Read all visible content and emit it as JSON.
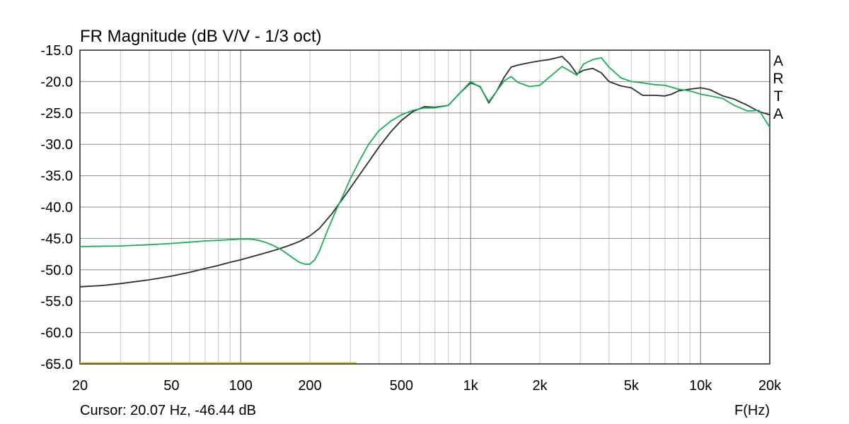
{
  "chart_data": {
    "type": "line",
    "title": "FR Magnitude (dB V/V - 1/3 oct)",
    "xlabel": "F(Hz)",
    "x_scale": "log",
    "xlim": [
      20,
      20000
    ],
    "ylim": [
      -65,
      -15
    ],
    "grid": true,
    "watermark": "ARTA",
    "cursor_text": "Cursor: 20.07 Hz, -46.44 dB",
    "y_ticks": [
      -15,
      -20,
      -25,
      -30,
      -35,
      -40,
      -45,
      -50,
      -55,
      -60,
      -65
    ],
    "y_tick_labels": [
      "-15.0",
      "-20.0",
      "-25.0",
      "-30.0",
      "-35.0",
      "-40.0",
      "-45.0",
      "-50.0",
      "-55.0",
      "-60.0",
      "-65.0"
    ],
    "x_ticks": [
      20,
      50,
      100,
      200,
      500,
      1000,
      2000,
      5000,
      10000,
      20000
    ],
    "x_tick_labels": [
      "20",
      "50",
      "100",
      "200",
      "500",
      "1k",
      "2k",
      "5k",
      "10k",
      "20k"
    ],
    "series": [
      {
        "color": "#2e2e2e",
        "x": [
          20,
          25,
          30,
          40,
          50,
          60,
          70,
          80,
          90,
          100,
          120,
          140,
          160,
          180,
          200,
          220,
          250,
          280,
          320,
          360,
          400,
          450,
          500,
          560,
          630,
          700,
          800,
          900,
          1000,
          1100,
          1200,
          1300,
          1400,
          1500,
          1600,
          1800,
          2000,
          2200,
          2500,
          2700,
          2900,
          3100,
          3400,
          3700,
          4000,
          4500,
          5000,
          5600,
          6300,
          7000,
          7500,
          8000,
          9000,
          10000,
          11000,
          12500,
          14000,
          16000,
          18000,
          20000
        ],
        "y": [
          -52.7,
          -52.5,
          -52.2,
          -51.6,
          -51.0,
          -50.4,
          -49.8,
          -49.3,
          -48.8,
          -48.4,
          -47.6,
          -46.9,
          -46.2,
          -45.5,
          -44.6,
          -43.4,
          -41.0,
          -38.5,
          -35.5,
          -32.8,
          -30.4,
          -28.0,
          -26.2,
          -24.8,
          -24.0,
          -24.1,
          -23.8,
          -21.8,
          -20.2,
          -20.8,
          -23.4,
          -21.5,
          -19.3,
          -17.7,
          -17.4,
          -17.0,
          -16.7,
          -16.5,
          -16.0,
          -17.2,
          -18.8,
          -18.2,
          -17.9,
          -18.6,
          -20.0,
          -20.7,
          -21.0,
          -22.2,
          -22.2,
          -22.3,
          -22.0,
          -21.5,
          -21.2,
          -21.0,
          -21.3,
          -22.3,
          -22.8,
          -23.8,
          -24.8,
          -25.3
        ]
      },
      {
        "color": "#1aae5a",
        "x": [
          20,
          30,
          40,
          50,
          60,
          70,
          80,
          90,
          100,
          110,
          120,
          130,
          140,
          150,
          160,
          170,
          180,
          190,
          200,
          210,
          220,
          240,
          260,
          280,
          300,
          330,
          360,
          400,
          450,
          500,
          560,
          630,
          700,
          800,
          900,
          1000,
          1100,
          1200,
          1300,
          1400,
          1500,
          1600,
          1800,
          2000,
          2200,
          2500,
          2700,
          2900,
          3100,
          3400,
          3700,
          4000,
          4500,
          5000,
          5600,
          6300,
          7000,
          8000,
          9000,
          10000,
          11000,
          12500,
          14000,
          16000,
          18000,
          20000
        ],
        "y": [
          -46.3,
          -46.2,
          -46.0,
          -45.8,
          -45.6,
          -45.4,
          -45.3,
          -45.2,
          -45.1,
          -45.1,
          -45.3,
          -45.7,
          -46.2,
          -46.8,
          -47.5,
          -48.2,
          -48.8,
          -49.1,
          -49.1,
          -48.4,
          -47.0,
          -43.5,
          -40.5,
          -38.0,
          -35.5,
          -32.5,
          -30.0,
          -27.8,
          -26.3,
          -25.3,
          -24.6,
          -24.2,
          -24.2,
          -23.8,
          -21.8,
          -20.0,
          -20.9,
          -23.2,
          -21.5,
          -19.9,
          -19.2,
          -20.1,
          -20.8,
          -20.6,
          -19.3,
          -17.6,
          -18.3,
          -19.0,
          -17.2,
          -16.5,
          -16.2,
          -17.7,
          -19.4,
          -20.0,
          -20.2,
          -20.5,
          -20.6,
          -21.2,
          -21.5,
          -22.0,
          -22.3,
          -22.7,
          -23.8,
          -24.7,
          -24.6,
          -27.3
        ]
      },
      {
        "color": "#c9c23a",
        "x": [
          20,
          320
        ],
        "y": [
          -65,
          -65
        ]
      }
    ]
  }
}
